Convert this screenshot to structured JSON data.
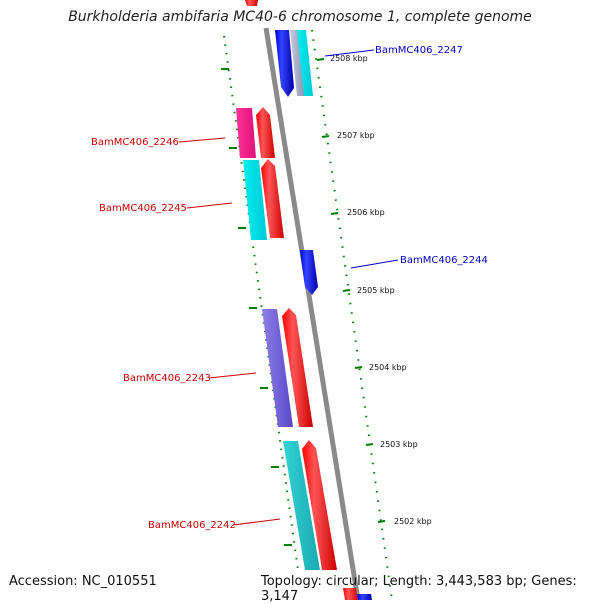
{
  "title": "Burkholderia ambifaria MC40-6 chromosome 1, complete genome",
  "footer": {
    "accession": "Accession: NC_010551",
    "topology": "Topology: circular; Length: 3,443,583 bp; Genes: 3,147"
  },
  "colors": {
    "forward": "#ff0000",
    "reverse": "#0000ee",
    "magenta": "#ff22aa",
    "cyan": "#00e5ee",
    "teal": "#22c8c8",
    "violet": "#7b68dd",
    "backbone": "#8a8a8a",
    "ticks": "#008000",
    "label_forward": "#cc0000",
    "label_reverse": "#0000cc"
  },
  "scale_labels": [
    "2508 kbp",
    "2507 kbp",
    "2506 kbp",
    "2505 kbp",
    "2504 kbp",
    "2503 kbp",
    "2502 kbp"
  ],
  "gene_labels": [
    {
      "text": "BamMC406_2247",
      "strand": "reverse"
    },
    {
      "text": "BamMC406_2246",
      "strand": "forward"
    },
    {
      "text": "BamMC406_2245",
      "strand": "forward"
    },
    {
      "text": "BamMC406_2244",
      "strand": "reverse"
    },
    {
      "text": "BamMC406_2243",
      "strand": "forward"
    },
    {
      "text": "BamMC406_2242",
      "strand": "forward"
    }
  ]
}
